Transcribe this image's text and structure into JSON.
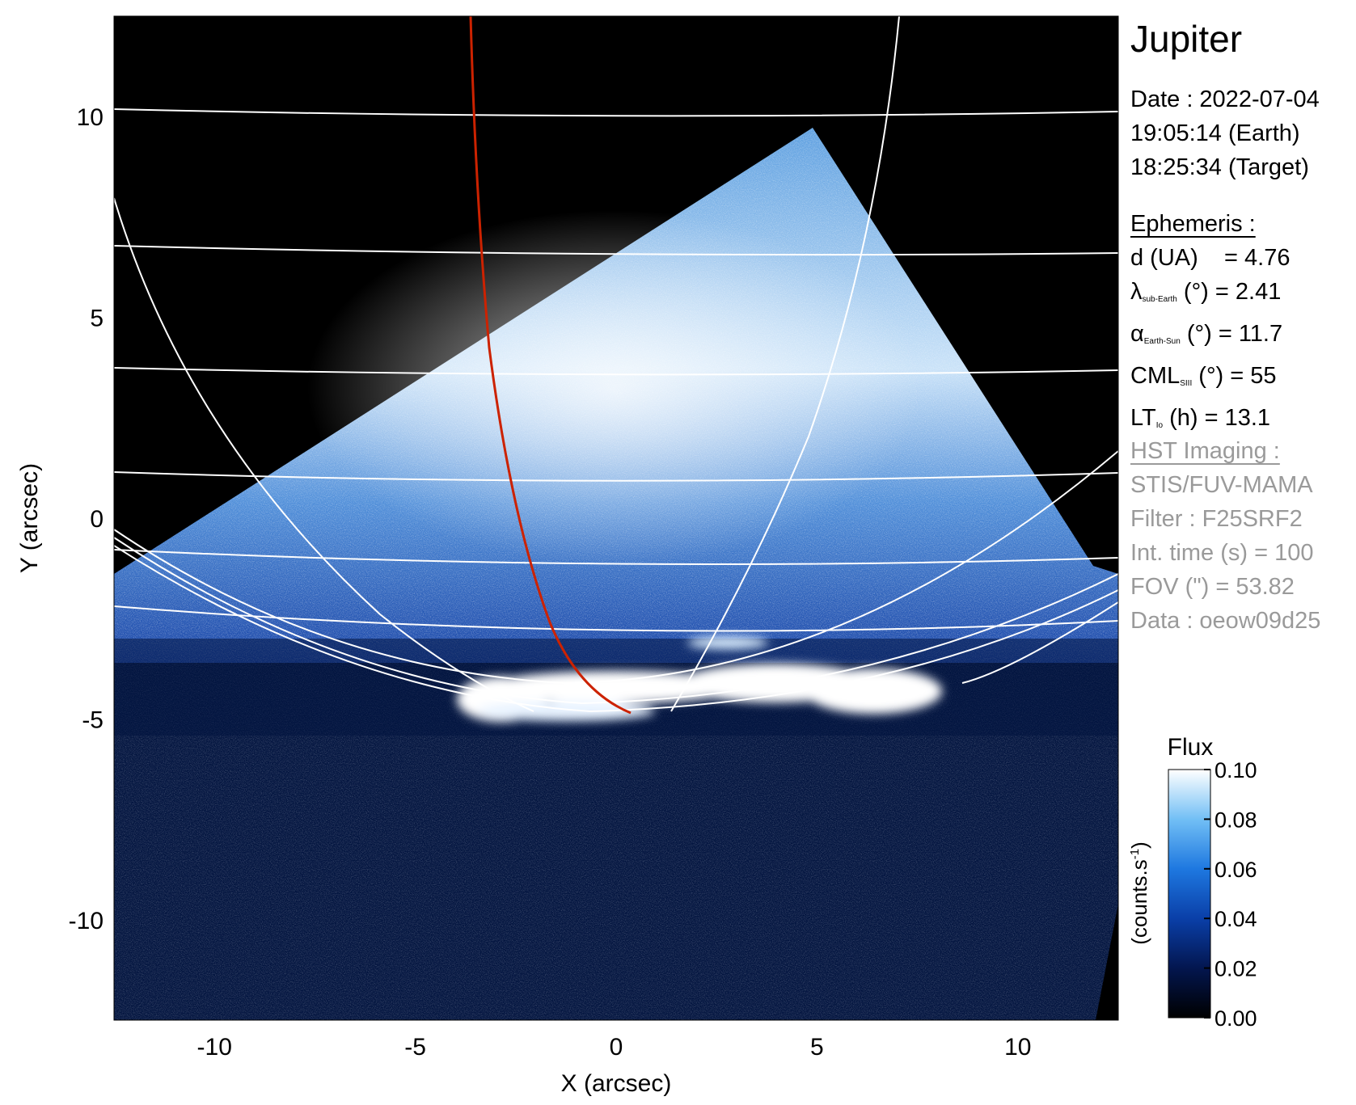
{
  "title": "Jupiter",
  "date": {
    "line1": "Date : 2022-07-04",
    "line2": "19:05:14 (Earth)",
    "line3": "18:25:34 (Target)"
  },
  "ephemeris": {
    "heading": "Ephemeris :",
    "d": "d (UA)    = 4.76",
    "lambda_sym": "λ",
    "lambda_sub": "sub-Earth",
    "lambda_rest": " (°) = 2.41",
    "alpha_sym": "α",
    "alpha_sub": "Earth-Sun",
    "alpha_rest": " (°) = 11.7",
    "cml_main": "CML",
    "cml_sub": "SIII",
    "cml_rest": " (°) = 55",
    "lt_main": "LT",
    "lt_sub": "Io",
    "lt_rest": " (h) = 13.1"
  },
  "hst": {
    "heading": "HST Imaging :",
    "instrument": "STIS/FUV-MAMA",
    "filter": "Filter : F25SRF2",
    "int_time": "Int. time (s) = 100",
    "fov": "FOV (\") = 53.82",
    "data": "Data : oeow09d25"
  },
  "axes": {
    "xlabel": "X (arcsec)",
    "ylabel": "Y (arcsec)",
    "xlim": [
      -12.5,
      12.5
    ],
    "ylim": [
      -12.5,
      12.5
    ],
    "xticks": [
      "-10",
      "-5",
      "0",
      "5",
      "10"
    ],
    "yticks": [
      "-10",
      "-5",
      "0",
      "5",
      "10"
    ]
  },
  "colorbar": {
    "title": "Flux",
    "label": "(counts.s",
    "label_sup": "-1",
    "label_end": ")",
    "ticks": [
      "0.00",
      "0.02",
      "0.04",
      "0.06",
      "0.08",
      "0.10"
    ],
    "range": [
      0.0,
      0.1
    ]
  },
  "colors": {
    "background": "#000000",
    "image_low": "#00082e",
    "image_high": "#ffffff",
    "grid": "#ffffff",
    "footprint_line": "#cc2200",
    "hst_text": "#9a9a9a"
  }
}
